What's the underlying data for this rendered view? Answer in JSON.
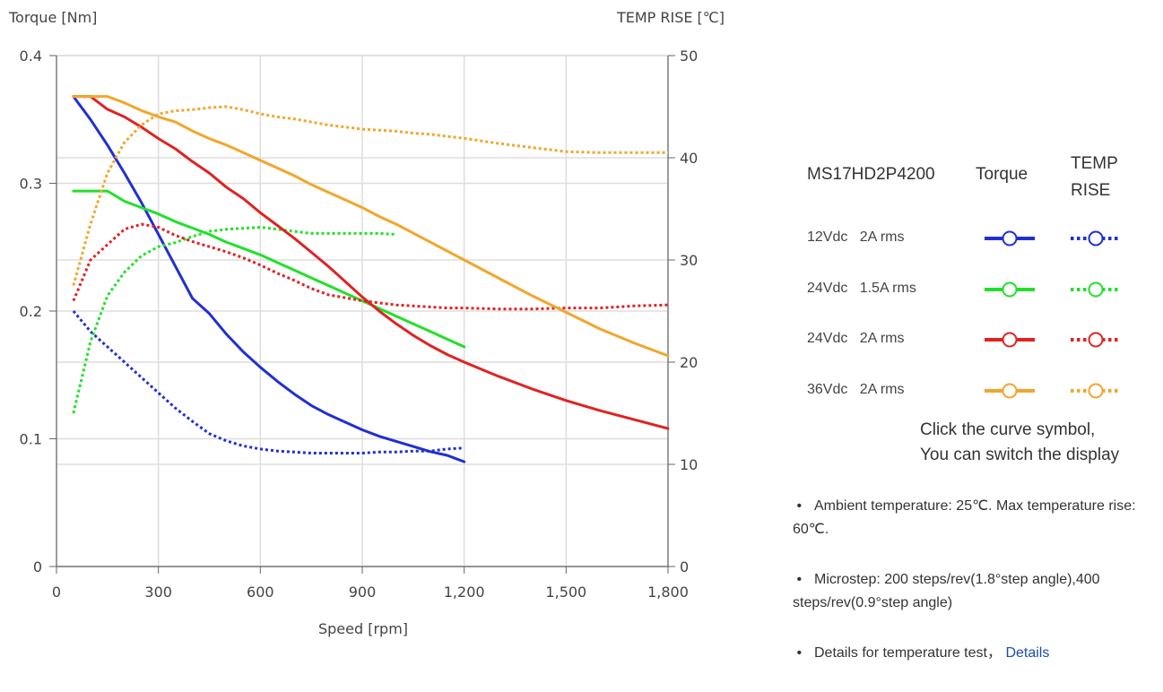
{
  "chart_data": {
    "type": "line",
    "ylabel": "Torque  [Nm]",
    "y2label": "TEMP RISE [℃]",
    "xlabel": "Speed [rpm]",
    "xlim": [
      0,
      1800
    ],
    "ylim": [
      0,
      0.4
    ],
    "y2lim": [
      0,
      50
    ],
    "x_ticks": [
      "0",
      "300",
      "600",
      "900",
      "1,200",
      "1,500",
      "1,800"
    ],
    "y_ticks": [
      "0",
      "0.1",
      "0.2",
      "0.3",
      "0.4"
    ],
    "y2_ticks": [
      "0",
      "10",
      "20",
      "30",
      "40",
      "50"
    ],
    "grid": true,
    "series": [
      {
        "name": "12Vdc 2A rms",
        "metric": "Torque",
        "axis": "left",
        "color": "#1f2fd4",
        "style": "solid",
        "x": [
          50,
          100,
          150,
          200,
          250,
          300,
          350,
          400,
          450,
          500,
          550,
          600,
          650,
          700,
          750,
          800,
          850,
          900,
          950,
          1000,
          1050,
          1100,
          1150,
          1200
        ],
        "y": [
          0.368,
          0.35,
          0.33,
          0.308,
          0.285,
          0.26,
          0.235,
          0.21,
          0.198,
          0.182,
          0.168,
          0.156,
          0.145,
          0.135,
          0.126,
          0.119,
          0.113,
          0.107,
          0.102,
          0.098,
          0.094,
          0.09,
          0.087,
          0.082
        ]
      },
      {
        "name": "12Vdc 2A rms",
        "metric": "TEMP RISE",
        "axis": "right",
        "color": "#1f2fd4",
        "style": "dotted",
        "x": [
          50,
          100,
          150,
          200,
          250,
          300,
          350,
          400,
          450,
          500,
          550,
          600,
          650,
          700,
          750,
          800,
          850,
          900,
          950,
          1000,
          1050,
          1100,
          1150,
          1200
        ],
        "y": [
          25,
          23,
          21.5,
          20,
          18.5,
          17,
          15.5,
          14.2,
          13,
          12.3,
          11.8,
          11.5,
          11.3,
          11.2,
          11.1,
          11.1,
          11.1,
          11.1,
          11.2,
          11.2,
          11.3,
          11.3,
          11.5,
          11.6
        ]
      },
      {
        "name": "24Vdc 1.5A rms",
        "metric": "Torque",
        "axis": "left",
        "color": "#22e02a",
        "style": "solid",
        "x": [
          50,
          100,
          150,
          200,
          250,
          300,
          350,
          400,
          450,
          500,
          550,
          600,
          650,
          700,
          750,
          800,
          850,
          900,
          950,
          1000,
          1050,
          1100,
          1150,
          1200
        ],
        "y": [
          0.294,
          0.294,
          0.294,
          0.286,
          0.281,
          0.276,
          0.27,
          0.265,
          0.26,
          0.254,
          0.249,
          0.244,
          0.238,
          0.232,
          0.226,
          0.22,
          0.214,
          0.208,
          0.202,
          0.196,
          0.19,
          0.184,
          0.178,
          0.172
        ]
      },
      {
        "name": "24Vdc 1.5A rms",
        "metric": "TEMP RISE",
        "axis": "right",
        "color": "#22e02a",
        "style": "dotted",
        "x": [
          50,
          100,
          150,
          200,
          250,
          300,
          350,
          400,
          450,
          500,
          550,
          600,
          650,
          700,
          750,
          800,
          850,
          900,
          950,
          1000
        ],
        "y": [
          15,
          22,
          26.5,
          28.8,
          30.4,
          31.3,
          31.7,
          32.3,
          32.8,
          33,
          33.1,
          33.2,
          33,
          32.8,
          32.6,
          32.6,
          32.6,
          32.6,
          32.6,
          32.5
        ]
      },
      {
        "name": "24Vdc 2A rms",
        "metric": "Torque",
        "axis": "left",
        "color": "#e12222",
        "style": "solid",
        "x": [
          50,
          100,
          150,
          200,
          250,
          300,
          350,
          400,
          450,
          500,
          550,
          600,
          650,
          700,
          750,
          800,
          850,
          900,
          950,
          1000,
          1050,
          1100,
          1150,
          1200,
          1300,
          1400,
          1500,
          1600,
          1700,
          1800
        ],
        "y": [
          0.368,
          0.368,
          0.358,
          0.352,
          0.344,
          0.335,
          0.327,
          0.317,
          0.308,
          0.297,
          0.288,
          0.277,
          0.267,
          0.257,
          0.246,
          0.235,
          0.223,
          0.211,
          0.2,
          0.19,
          0.181,
          0.173,
          0.166,
          0.16,
          0.149,
          0.139,
          0.13,
          0.122,
          0.115,
          0.108
        ]
      },
      {
        "name": "24Vdc 2A rms",
        "metric": "TEMP RISE",
        "axis": "right",
        "color": "#e12222",
        "style": "dotted",
        "x": [
          50,
          100,
          150,
          200,
          250,
          300,
          350,
          400,
          450,
          500,
          550,
          600,
          650,
          700,
          750,
          800,
          850,
          900,
          950,
          1000,
          1050,
          1100,
          1150,
          1200,
          1300,
          1400,
          1500,
          1600,
          1700,
          1800
        ],
        "y": [
          26,
          30,
          31.5,
          33,
          33.5,
          33.2,
          32.4,
          31.8,
          31.3,
          30.8,
          30.2,
          29.5,
          28.7,
          28,
          27.2,
          26.6,
          26.3,
          26,
          25.8,
          25.6,
          25.5,
          25.4,
          25.3,
          25.3,
          25.2,
          25.2,
          25.3,
          25.3,
          25.5,
          25.6
        ]
      },
      {
        "name": "36Vdc 2A rms",
        "metric": "Torque",
        "axis": "left",
        "color": "#f2a62a",
        "style": "solid",
        "x": [
          50,
          100,
          150,
          200,
          250,
          300,
          350,
          400,
          450,
          500,
          550,
          600,
          650,
          700,
          750,
          800,
          850,
          900,
          950,
          1000,
          1050,
          1100,
          1150,
          1200,
          1300,
          1400,
          1500,
          1600,
          1700,
          1800
        ],
        "y": [
          0.368,
          0.368,
          0.368,
          0.363,
          0.357,
          0.352,
          0.348,
          0.341,
          0.335,
          0.33,
          0.324,
          0.318,
          0.312,
          0.306,
          0.299,
          0.293,
          0.287,
          0.281,
          0.274,
          0.268,
          0.261,
          0.254,
          0.247,
          0.24,
          0.226,
          0.212,
          0.199,
          0.186,
          0.175,
          0.165
        ]
      },
      {
        "name": "36Vdc 2A rms",
        "metric": "TEMP RISE",
        "axis": "right",
        "color": "#f2a62a",
        "style": "dotted",
        "x": [
          50,
          100,
          150,
          200,
          250,
          300,
          350,
          400,
          450,
          500,
          550,
          600,
          650,
          700,
          750,
          800,
          850,
          900,
          950,
          1000,
          1050,
          1100,
          1150,
          1200,
          1300,
          1400,
          1500,
          1600,
          1700,
          1800
        ],
        "y": [
          27.5,
          33.5,
          38.5,
          41.5,
          43.2,
          44.3,
          44.6,
          44.7,
          44.9,
          45,
          44.7,
          44.3,
          44,
          43.8,
          43.5,
          43.2,
          43,
          42.8,
          42.7,
          42.6,
          42.4,
          42.3,
          42.1,
          41.9,
          41.4,
          41,
          40.6,
          40.5,
          40.5,
          40.5
        ]
      }
    ]
  },
  "legend": {
    "header_model": "MS17HD2P4200",
    "header_torque": "Torque",
    "header_temp": "TEMP RISE",
    "rows": [
      {
        "label": "12Vdc   2A rms",
        "color": "#1f2fd4"
      },
      {
        "label": "24Vdc   1.5A rms",
        "color": "#22e02a"
      },
      {
        "label": "24Vdc   2A rms",
        "color": "#e12222"
      },
      {
        "label": "36Vdc   2A rms",
        "color": "#f2a62a"
      }
    ],
    "hint_line1": "Click the curve symbol,",
    "hint_line2": "You can switch the display"
  },
  "notes": {
    "note1": "Ambient temperature: 25℃.  Max temperature rise: 60℃.",
    "note2": "Microstep: 200 steps/rev(1.8°step angle),400 steps/rev(0.9°step angle)",
    "note3_text": "Details for temperature test，",
    "note3_link": "Details"
  }
}
